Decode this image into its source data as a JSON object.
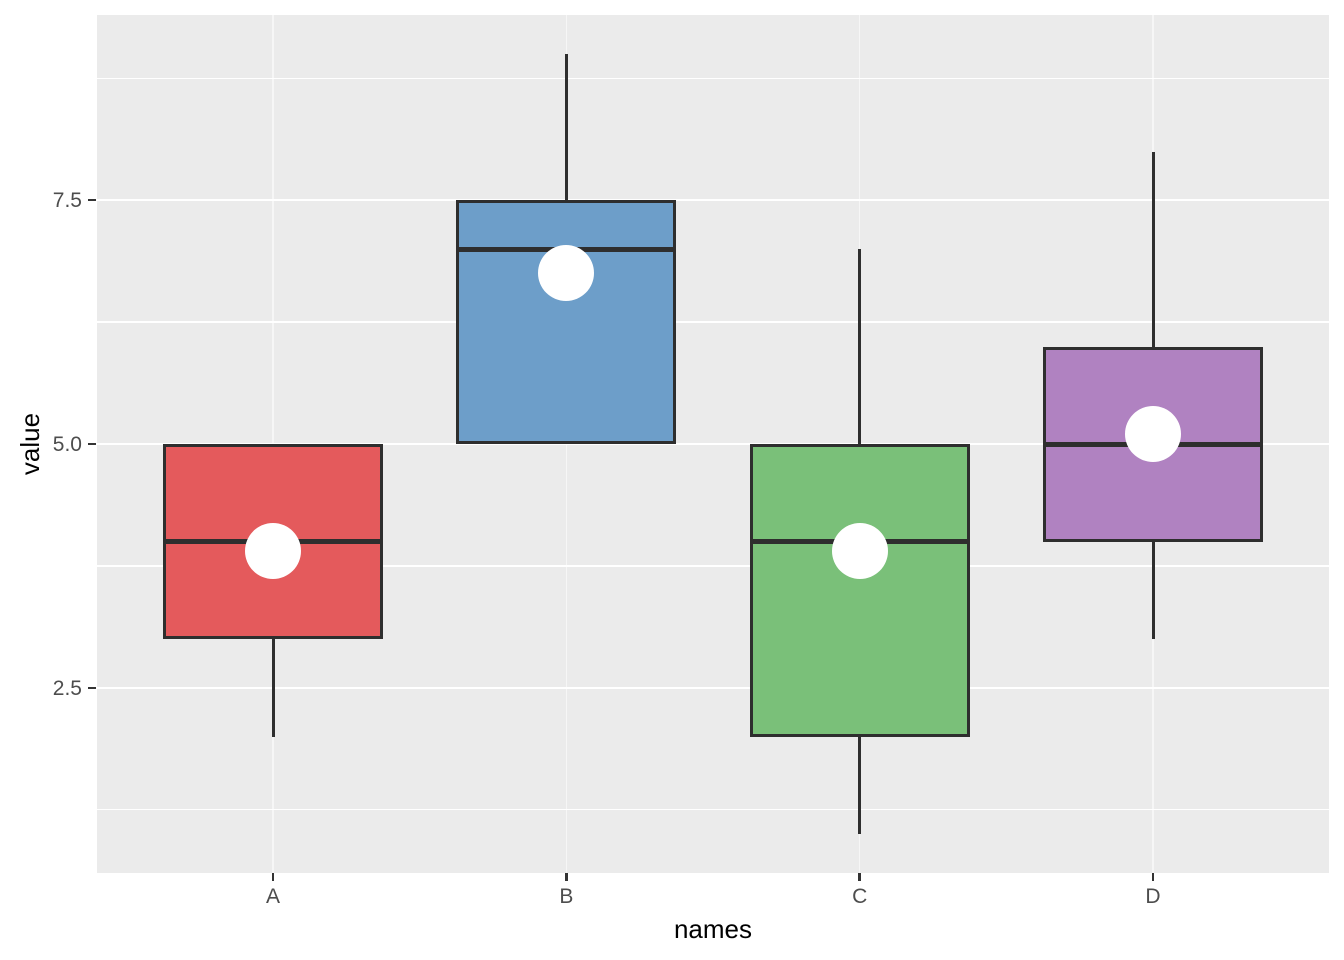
{
  "chart_data": {
    "type": "boxplot",
    "title": "",
    "xlabel": "names",
    "ylabel": "value",
    "categories": [
      "A",
      "B",
      "C",
      "D"
    ],
    "series": [
      {
        "name": "A",
        "min": 2,
        "q1": 3,
        "median": 4,
        "q3": 5,
        "max": 5,
        "mean": 3.9,
        "fill": "#E45A5C"
      },
      {
        "name": "B",
        "min": 5,
        "q1": 5,
        "median": 7,
        "q3": 7.5,
        "max": 9,
        "mean": 6.75,
        "fill": "#6D9EC9"
      },
      {
        "name": "C",
        "min": 1,
        "q1": 2,
        "median": 4,
        "q3": 5,
        "max": 7,
        "mean": 3.9,
        "fill": "#7AC079"
      },
      {
        "name": "D",
        "min": 3,
        "q1": 4,
        "median": 5,
        "q3": 6,
        "max": 8,
        "mean": 5.1,
        "fill": "#B082C1"
      }
    ],
    "y_axis": {
      "ticks": [
        {
          "label": "2.5",
          "value": 2.5
        },
        {
          "label": "5.0",
          "value": 5.0
        },
        {
          "label": "7.5",
          "value": 7.5
        }
      ],
      "minor_gridlines": [
        1.25,
        3.75,
        6.25,
        8.75
      ],
      "range": [
        0.6,
        9.4
      ],
      "grid": "on",
      "legend": "none"
    },
    "style": {
      "page_bg": "#FFFFFF",
      "panel_bg": "#EBEBEB",
      "grid_color": "#FFFFFF",
      "line_color": "#2E2E2E",
      "mean_dot_color": "#FFFFFF",
      "tick_label_color": "#4D4D4D",
      "axis_title_color": "#000000"
    }
  }
}
